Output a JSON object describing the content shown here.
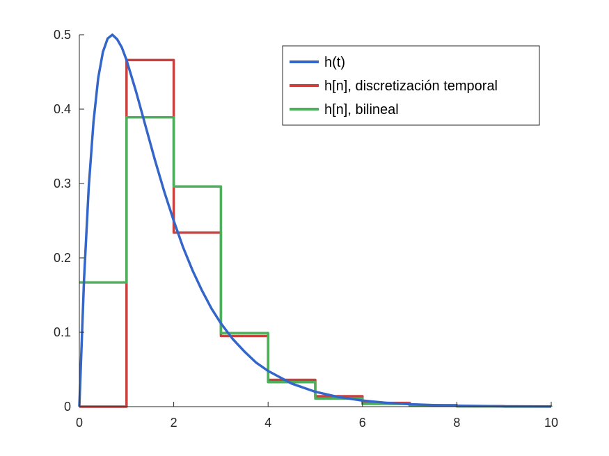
{
  "chart_data": {
    "type": "line",
    "title": "",
    "xlabel": "",
    "ylabel": "",
    "xlim": [
      0,
      10
    ],
    "ylim": [
      0,
      0.5
    ],
    "xticks": [
      0,
      2,
      4,
      6,
      8,
      10
    ],
    "xtick_labels": [
      "0",
      "2",
      "4",
      "6",
      "8",
      "10"
    ],
    "yticks": [
      0,
      0.1,
      0.2,
      0.3,
      0.4,
      0.5
    ],
    "ytick_labels": [
      "0",
      "0.1",
      "0.2",
      "0.3",
      "0.4",
      "0.5"
    ],
    "grid": false,
    "legend_position": "top-right",
    "series": [
      {
        "name": "h(t)",
        "kind": "continuous",
        "color": "#3366c8",
        "x": [
          0,
          0.1,
          0.2,
          0.3,
          0.4,
          0.5,
          0.6,
          0.7,
          0.8,
          0.9,
          1.0,
          1.2,
          1.4,
          1.6,
          1.8,
          2.0,
          2.2,
          2.4,
          2.6,
          2.8,
          3.0,
          3.25,
          3.5,
          3.75,
          4.0,
          4.5,
          5.0,
          5.5,
          6.0,
          6.5,
          7.0,
          7.5,
          8.0,
          9.0,
          10.0
        ],
        "values": [
          0,
          0.172,
          0.296,
          0.383,
          0.442,
          0.477,
          0.495,
          0.5,
          0.494,
          0.483,
          0.466,
          0.424,
          0.378,
          0.332,
          0.289,
          0.25,
          0.214,
          0.183,
          0.156,
          0.132,
          0.112,
          0.091,
          0.074,
          0.059,
          0.048,
          0.031,
          0.02,
          0.0128,
          0.0082,
          0.0052,
          0.0033,
          0.0021,
          0.0013,
          0.0005,
          0.0002
        ]
      },
      {
        "name": "h[n], discretización temporal",
        "kind": "stairs",
        "color": "#c8413f",
        "x": [
          0,
          1,
          2,
          3,
          4,
          5,
          6,
          7,
          8,
          9,
          10
        ],
        "values": [
          0,
          0.466,
          0.234,
          0.095,
          0.036,
          0.014,
          0.005,
          0.002,
          0.0006,
          0.0002,
          0.0001
        ]
      },
      {
        "name": "h[n], bilineal",
        "kind": "stairs",
        "color": "#4daf5b",
        "x": [
          0,
          1,
          2,
          3,
          4,
          5,
          6,
          7,
          8,
          9,
          10
        ],
        "values": [
          0.167,
          0.389,
          0.296,
          0.099,
          0.033,
          0.011,
          0.0037,
          0.0012,
          0.0004,
          0.0001,
          5e-05
        ]
      }
    ]
  }
}
